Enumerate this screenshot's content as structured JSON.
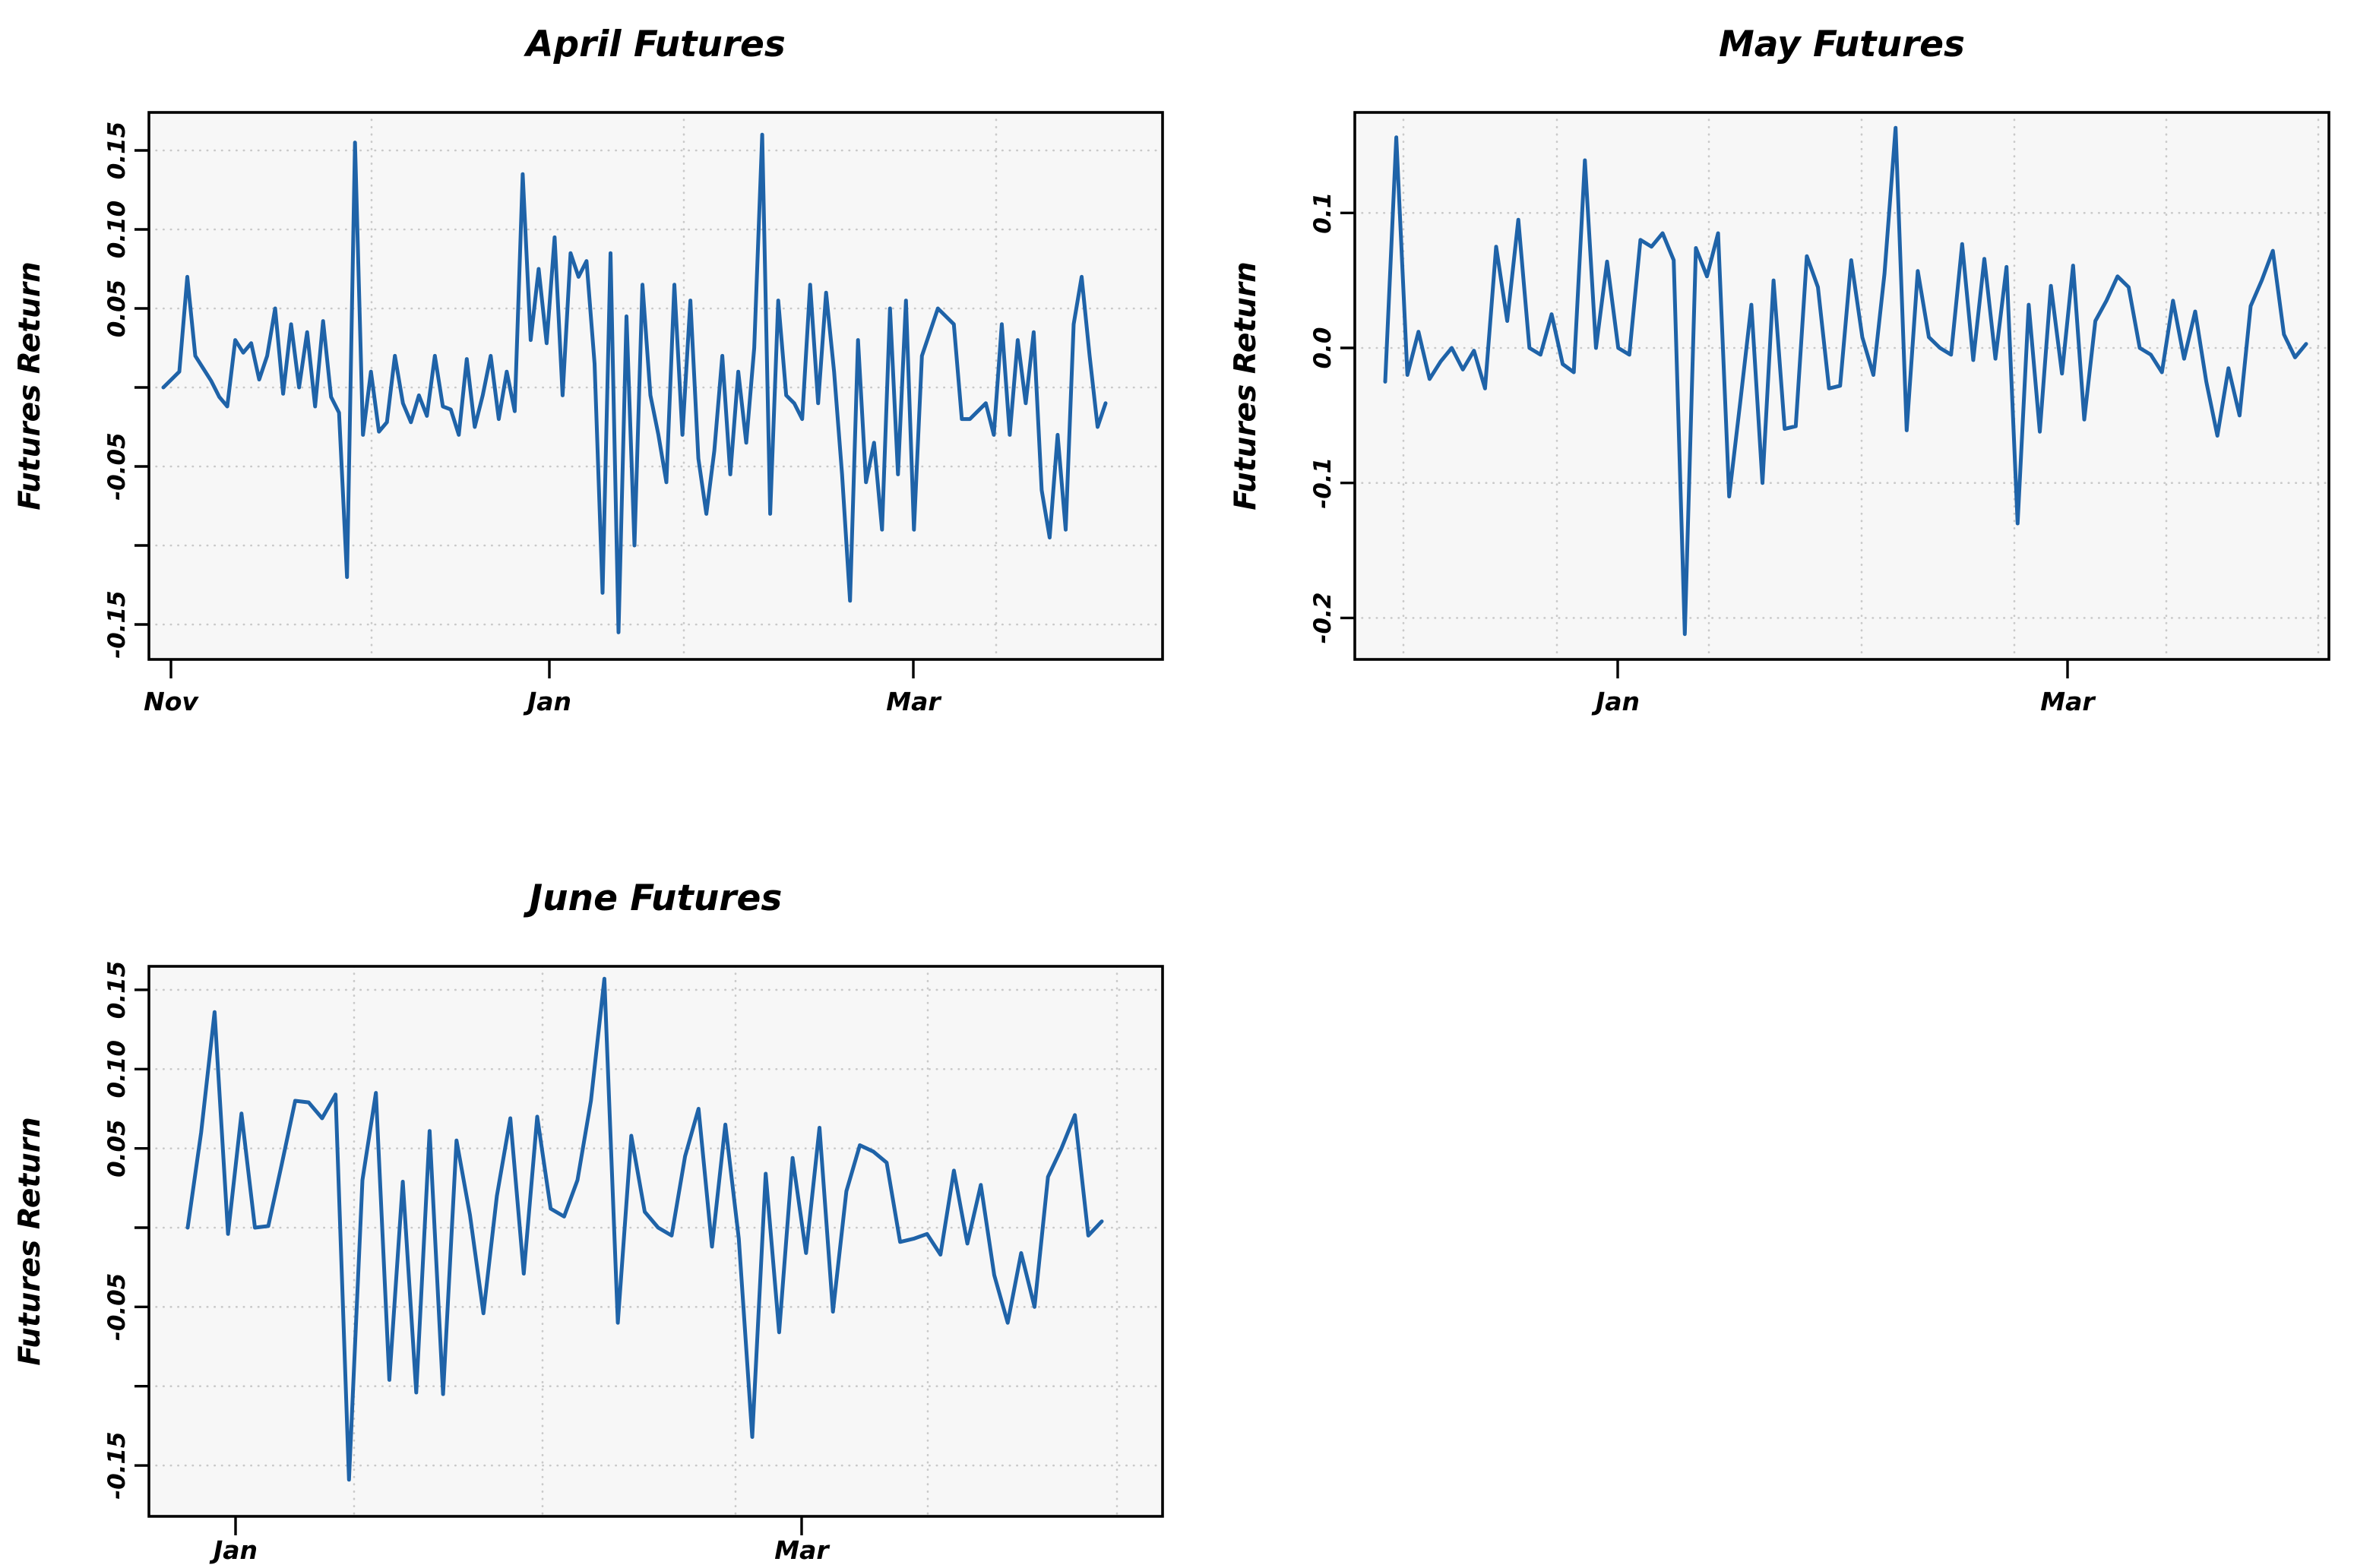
{
  "figure": {
    "background": "#ffffff",
    "line_color": "#1f63a8",
    "panel_background": "#f7f7f7",
    "grid_color": "#c9c9c9",
    "box_color": "#000000"
  },
  "chart_data": [
    {
      "type": "line",
      "title": "April Futures",
      "ylabel": "Futures Return",
      "xlabel": "",
      "x_tick_labels": [
        "Nov",
        "Jan",
        "Mar"
      ],
      "y_ticks_labeled": [
        "0.15",
        "0.10",
        "0.05",
        "-0.05",
        "-0.15"
      ],
      "y_tick_values_labeled": [
        0.15,
        0.1,
        0.05,
        -0.05,
        -0.15
      ],
      "y_tick_values_all": [
        0.15,
        0.1,
        0.05,
        0.0,
        -0.05,
        -0.1,
        -0.15
      ],
      "ylim": [
        -0.172,
        0.174
      ],
      "grid": "dotted",
      "legend": "none",
      "values": [
        0,
        0.005,
        0.01,
        0.07,
        0.02,
        0.012,
        0.004,
        -0.006,
        -0.012,
        0.03,
        0.022,
        0.028,
        0.005,
        0.02,
        0.05,
        -0.004,
        0.04,
        0,
        0.035,
        -0.012,
        0.042,
        -0.006,
        -0.016,
        -0.12,
        0.155,
        -0.03,
        0.01,
        -0.028,
        -0.022,
        0.02,
        -0.01,
        -0.022,
        -0.005,
        -0.018,
        0.02,
        -0.012,
        -0.014,
        -0.03,
        0.018,
        -0.025,
        -0.005,
        0.02,
        -0.02,
        0.01,
        -0.015,
        0.135,
        0.03,
        0.075,
        0.028,
        0.095,
        -0.005,
        0.085,
        0.07,
        0.08,
        0.015,
        -0.13,
        0.085,
        -0.155,
        0.045,
        -0.1,
        0.065,
        -0.005,
        -0.03,
        -0.06,
        0.065,
        -0.03,
        0.055,
        -0.045,
        -0.08,
        -0.04,
        0.02,
        -0.055,
        0.01,
        -0.035,
        0.025,
        0.16,
        -0.08,
        0.055,
        -0.005,
        -0.01,
        -0.02,
        0.065,
        -0.01,
        0.06,
        0.01,
        -0.055,
        -0.135,
        0.03,
        -0.06,
        -0.035,
        -0.09,
        0.05,
        -0.055,
        0.055,
        -0.09,
        0.02,
        0.035,
        0.05,
        0.045,
        0.04,
        -0.02,
        -0.02,
        -0.015,
        -0.01,
        -0.03,
        0.04,
        -0.03,
        0.03,
        -0.01,
        0.035,
        -0.065,
        -0.095,
        -0.03,
        -0.09,
        0.04,
        0.07,
        0.02,
        -0.025,
        -0.01
      ]
    },
    {
      "type": "line",
      "title": "May Futures",
      "ylabel": "Futures Return",
      "xlabel": "",
      "x_tick_labels": [
        "Jan",
        "Mar"
      ],
      "y_ticks_labeled": [
        "0.1",
        "0.0",
        "-0.1",
        "-0.2"
      ],
      "y_tick_values_labeled": [
        0.1,
        0.0,
        -0.1,
        -0.2
      ],
      "y_tick_values_all": [
        0.1,
        0.0,
        -0.1,
        -0.2
      ],
      "ylim": [
        -0.231,
        0.174
      ],
      "grid": "dotted",
      "legend": "none",
      "values": [
        -0.025,
        0.156,
        -0.02,
        0.012,
        -0.023,
        -0.01,
        0,
        -0.016,
        -0.002,
        -0.03,
        0.075,
        0.02,
        0.095,
        0,
        -0.005,
        0.025,
        -0.012,
        -0.018,
        0.139,
        0,
        0.064,
        0,
        -0.005,
        0.08,
        0.075,
        0.085,
        0.065,
        -0.212,
        0.074,
        0.053,
        0.085,
        -0.11,
        -0.04,
        0.032,
        -0.1,
        0.05,
        -0.06,
        -0.058,
        0.068,
        0.045,
        -0.03,
        -0.028,
        0.065,
        0.008,
        -0.02,
        0.055,
        0.163,
        -0.061,
        0.057,
        0.008,
        0,
        -0.005,
        0.077,
        -0.009,
        0.066,
        -0.008,
        0.06,
        -0.13,
        0.032,
        -0.062,
        0.046,
        -0.019,
        0.061,
        -0.053,
        0.02,
        0.035,
        0.053,
        0.045,
        0,
        -0.005,
        -0.018,
        0.035,
        -0.008,
        0.027,
        -0.025,
        -0.065,
        -0.015,
        -0.05,
        0.031,
        0.05,
        0.072,
        0.01,
        -0.007,
        0.003
      ]
    },
    {
      "type": "line",
      "title": "June Futures",
      "ylabel": "Futures Return",
      "xlabel": "",
      "x_tick_labels": [
        "Jan",
        "Mar"
      ],
      "y_ticks_labeled": [
        "0.15",
        "0.10",
        "0.05",
        "-0.05",
        "-0.15"
      ],
      "y_tick_values_labeled": [
        0.15,
        0.1,
        0.05,
        -0.05,
        -0.15
      ],
      "y_tick_values_all": [
        0.15,
        0.1,
        0.05,
        0.0,
        -0.05,
        -0.1,
        -0.15
      ],
      "ylim": [
        -0.182,
        0.165
      ],
      "grid": "dotted",
      "legend": "none",
      "values": [
        0,
        0.06,
        0.136,
        -0.004,
        0.072,
        0,
        0.001,
        0.04,
        0.08,
        0.079,
        0.069,
        0.084,
        -0.159,
        0.03,
        0.085,
        -0.096,
        0.029,
        -0.104,
        0.061,
        -0.105,
        0.055,
        0.008,
        -0.054,
        0.02,
        0.069,
        -0.029,
        0.07,
        0.012,
        0.007,
        0.03,
        0.08,
        0.157,
        -0.06,
        0.058,
        0.01,
        0,
        -0.005,
        0.045,
        0.075,
        -0.012,
        0.065,
        -0.007,
        -0.132,
        0.034,
        -0.066,
        0.044,
        -0.016,
        0.063,
        -0.053,
        0.023,
        0.052,
        0.048,
        0.041,
        -0.009,
        -0.007,
        -0.004,
        -0.017,
        0.036,
        -0.01,
        0.027,
        -0.03,
        -0.06,
        -0.016,
        -0.05,
        0.032,
        0.05,
        0.071,
        -0.005,
        0.004
      ]
    }
  ]
}
